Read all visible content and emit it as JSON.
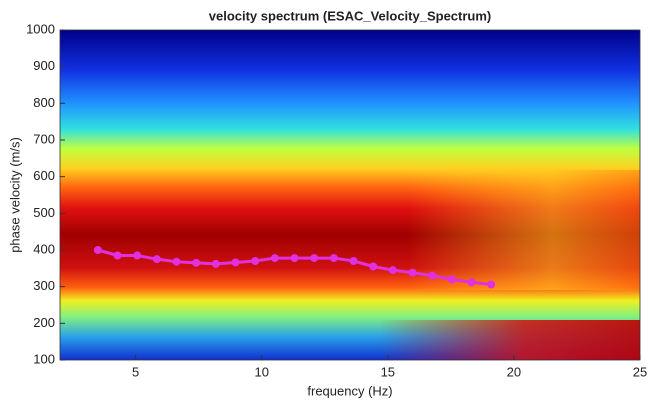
{
  "chart_data": {
    "type": "line",
    "title": "velocity spectrum (ESAC_Velocity_Spectrum)",
    "x_label": "frequency (Hz)",
    "y_label": "phase velocity (m/s)",
    "x": [
      3.5,
      4.28,
      5.06,
      5.84,
      6.62,
      7.4,
      8.18,
      8.96,
      9.74,
      10.52,
      11.3,
      12.08,
      12.86,
      13.64,
      14.42,
      15.2,
      15.98,
      16.76,
      17.54,
      18.32,
      19.1
    ],
    "series": [
      {
        "name": "dispersion curve",
        "color": "#e030e0",
        "values": [
          400,
          385,
          385,
          375,
          368,
          365,
          362,
          366,
          370,
          378,
          378,
          378,
          378,
          370,
          355,
          345,
          338,
          330,
          320,
          312,
          306
        ]
      }
    ],
    "xlim": [
      2,
      25
    ],
    "xticks": [
      5,
      10,
      15,
      20,
      25
    ],
    "ylim": [
      100,
      1000
    ],
    "yticks": [
      100,
      200,
      300,
      400,
      500,
      600,
      700,
      800,
      900,
      1000
    ]
  }
}
